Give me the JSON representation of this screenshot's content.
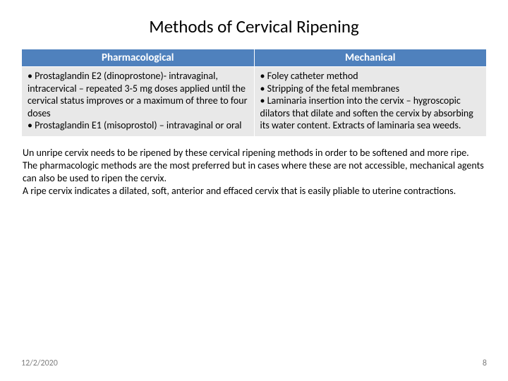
{
  "title": "Methods of Cervical Ripening",
  "table": {
    "headers": [
      "Pharmacological",
      "Mechanical"
    ],
    "cells": [
      "• Prostaglandin E2 (dinoprostone)- intravaginal, intracervical – repeated 3-5 mg doses applied until the cervical status improves or a maximum of three to four doses\n• Prostaglandin E1 (misoprostol) – intravaginal or oral",
      "• Foley catheter method\n• Stripping of the fetal membranes\n• Laminaria insertion into the cervix – hygroscopic dilators that dilate and soften the cervix by absorbing its water content. Extracts of laminaria sea weeds."
    ]
  },
  "summary": "Un unripe cervix needs to be ripened by these cervical ripening methods in order to be softened and more ripe. The pharmacologic methods are the most preferred but in cases where these are not accessible, mechanical agents can also be used to ripen the cervix.\nA ripe cervix indicates a dilated, soft, anterior and effaced cervix that is easily pliable to uterine contractions.",
  "footer": {
    "date": "12/2/2020",
    "page": "8"
  },
  "colors": {
    "header_bg": "#4f81bd",
    "header_text": "#ffffff",
    "cell_bg": "#e8e8e8",
    "body_text": "#000000",
    "footer_text": "#7f7f7f",
    "page_bg": "#ffffff"
  },
  "fonts": {
    "title_size_pt": 19,
    "header_size_pt": 11,
    "body_size_pt": 11,
    "footer_size_pt": 9
  }
}
